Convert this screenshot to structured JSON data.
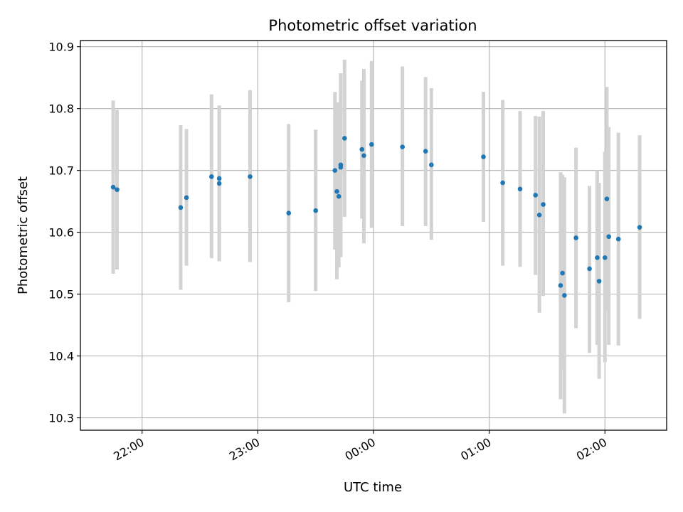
{
  "chart_data": {
    "type": "scatter",
    "title": "Photometric offset variation",
    "xlabel": "UTC time",
    "ylabel": "Photometric offset",
    "x_unit": "UTC hh:mm",
    "xlim": [
      "21:28",
      "02:32"
    ],
    "ylim": [
      10.28,
      10.91
    ],
    "xticks": [
      "22:00",
      "23:00",
      "00:00",
      "01:00",
      "02:00"
    ],
    "yticks": [
      10.3,
      10.4,
      10.5,
      10.6,
      10.7,
      10.8,
      10.9
    ],
    "grid": true,
    "colors": {
      "point": "#1f77b4",
      "errorbar": "#d3d3d3",
      "grid": "#b0b0b0"
    },
    "points": [
      {
        "x": "21:45",
        "y": 10.673,
        "ylo": 10.533,
        "yhi": 10.813
      },
      {
        "x": "21:47",
        "y": 10.669,
        "ylo": 10.54,
        "yhi": 10.798
      },
      {
        "x": "22:20",
        "y": 10.64,
        "ylo": 10.507,
        "yhi": 10.773
      },
      {
        "x": "22:23",
        "y": 10.656,
        "ylo": 10.546,
        "yhi": 10.767
      },
      {
        "x": "22:36",
        "y": 10.69,
        "ylo": 10.558,
        "yhi": 10.823
      },
      {
        "x": "22:40",
        "y": 10.687,
        "ylo": 10.553,
        "yhi": 10.805
      },
      {
        "x": "22:40",
        "y": 10.679,
        "ylo": 10.553,
        "yhi": 10.805
      },
      {
        "x": "22:56",
        "y": 10.69,
        "ylo": 10.552,
        "yhi": 10.83
      },
      {
        "x": "23:16",
        "y": 10.631,
        "ylo": 10.487,
        "yhi": 10.775
      },
      {
        "x": "23:30",
        "y": 10.635,
        "ylo": 10.505,
        "yhi": 10.766
      },
      {
        "x": "23:40",
        "y": 10.7,
        "ylo": 10.572,
        "yhi": 10.827
      },
      {
        "x": "23:41",
        "y": 10.666,
        "ylo": 10.524,
        "yhi": 10.81
      },
      {
        "x": "23:42",
        "y": 10.658,
        "ylo": 10.543,
        "yhi": 10.81
      },
      {
        "x": "23:43",
        "y": 10.709,
        "ylo": 10.56,
        "yhi": 10.857
      },
      {
        "x": "23:43",
        "y": 10.705,
        "ylo": 10.565,
        "yhi": 10.857
      },
      {
        "x": "23:45",
        "y": 10.752,
        "ylo": 10.625,
        "yhi": 10.879
      },
      {
        "x": "23:54",
        "y": 10.734,
        "ylo": 10.622,
        "yhi": 10.845
      },
      {
        "x": "23:55",
        "y": 10.724,
        "ylo": 10.582,
        "yhi": 10.864
      },
      {
        "x": "23:59",
        "y": 10.742,
        "ylo": 10.607,
        "yhi": 10.877
      },
      {
        "x": "00:15",
        "y": 10.738,
        "ylo": 10.61,
        "yhi": 10.868
      },
      {
        "x": "00:27",
        "y": 10.731,
        "ylo": 10.61,
        "yhi": 10.851
      },
      {
        "x": "00:30",
        "y": 10.709,
        "ylo": 10.588,
        "yhi": 10.833
      },
      {
        "x": "00:57",
        "y": 10.722,
        "ylo": 10.617,
        "yhi": 10.827
      },
      {
        "x": "01:07",
        "y": 10.68,
        "ylo": 10.546,
        "yhi": 10.814
      },
      {
        "x": "01:16",
        "y": 10.67,
        "ylo": 10.544,
        "yhi": 10.796
      },
      {
        "x": "01:24",
        "y": 10.66,
        "ylo": 10.531,
        "yhi": 10.788
      },
      {
        "x": "01:26",
        "y": 10.628,
        "ylo": 10.47,
        "yhi": 10.787
      },
      {
        "x": "01:28",
        "y": 10.645,
        "ylo": 10.497,
        "yhi": 10.796
      },
      {
        "x": "01:37",
        "y": 10.514,
        "ylo": 10.33,
        "yhi": 10.697
      },
      {
        "x": "01:38",
        "y": 10.534,
        "ylo": 10.377,
        "yhi": 10.693
      },
      {
        "x": "01:39",
        "y": 10.498,
        "ylo": 10.307,
        "yhi": 10.689
      },
      {
        "x": "01:45",
        "y": 10.591,
        "ylo": 10.445,
        "yhi": 10.737
      },
      {
        "x": "01:52",
        "y": 10.541,
        "ylo": 10.405,
        "yhi": 10.675
      },
      {
        "x": "01:56",
        "y": 10.559,
        "ylo": 10.418,
        "yhi": 10.7
      },
      {
        "x": "01:57",
        "y": 10.521,
        "ylo": 10.363,
        "yhi": 10.68
      },
      {
        "x": "02:00",
        "y": 10.559,
        "ylo": 10.39,
        "yhi": 10.73
      },
      {
        "x": "02:01",
        "y": 10.654,
        "ylo": 10.473,
        "yhi": 10.835
      },
      {
        "x": "02:02",
        "y": 10.593,
        "ylo": 10.418,
        "yhi": 10.77
      },
      {
        "x": "02:07",
        "y": 10.589,
        "ylo": 10.417,
        "yhi": 10.761
      },
      {
        "x": "02:18",
        "y": 10.608,
        "ylo": 10.46,
        "yhi": 10.757
      }
    ]
  }
}
